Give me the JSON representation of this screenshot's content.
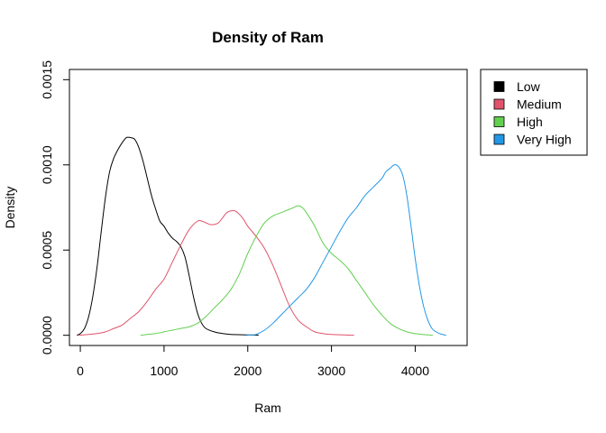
{
  "chart_data": {
    "type": "line",
    "title": "Density of Ram",
    "xlabel": "Ram",
    "ylabel": "Density",
    "xlim": [
      -130,
      4620
    ],
    "ylim": [
      -6e-05,
      0.00156
    ],
    "x_ticks": [
      0,
      1000,
      2000,
      3000,
      4000
    ],
    "x_tick_labels": [
      "0",
      "1000",
      "2000",
      "3000",
      "4000"
    ],
    "y_ticks": [
      0,
      0.0005,
      0.001,
      0.0015
    ],
    "y_tick_labels": [
      "0.0000",
      "0.0005",
      "0.0010",
      "0.0015"
    ],
    "grid": false,
    "legend_position": "top-right-outside",
    "series": [
      {
        "name": "Low",
        "color": "#000000",
        "points": [
          [
            -40,
            0
          ],
          [
            0,
            1e-05
          ],
          [
            50,
            4e-05
          ],
          [
            100,
            0.00011
          ],
          [
            150,
            0.00023
          ],
          [
            200,
            0.0004
          ],
          [
            250,
            0.00061
          ],
          [
            300,
            0.00081
          ],
          [
            350,
            0.00096
          ],
          [
            400,
            0.00104
          ],
          [
            450,
            0.00109
          ],
          [
            500,
            0.00113
          ],
          [
            550,
            0.00116
          ],
          [
            600,
            0.00116
          ],
          [
            650,
            0.00115
          ],
          [
            700,
            0.0011
          ],
          [
            750,
            0.00102
          ],
          [
            800,
            0.00092
          ],
          [
            850,
            0.00082
          ],
          [
            900,
            0.00074
          ],
          [
            950,
            0.00067
          ],
          [
            1000,
            0.00064
          ],
          [
            1050,
            0.0006
          ],
          [
            1100,
            0.00057
          ],
          [
            1150,
            0.00055
          ],
          [
            1200,
            0.00052
          ],
          [
            1250,
            0.00046
          ],
          [
            1300,
            0.00035
          ],
          [
            1350,
            0.00023
          ],
          [
            1400,
            0.00013
          ],
          [
            1450,
            7e-05
          ],
          [
            1500,
            4e-05
          ],
          [
            1600,
            2e-05
          ],
          [
            1700,
            1e-05
          ],
          [
            1800,
            5e-06
          ],
          [
            2000,
            2e-06
          ],
          [
            2130,
            0
          ]
        ]
      },
      {
        "name": "Medium",
        "color": "#DF536B",
        "points": [
          [
            -20,
            0
          ],
          [
            100,
            5e-06
          ],
          [
            200,
            1e-05
          ],
          [
            300,
            2e-05
          ],
          [
            400,
            4e-05
          ],
          [
            500,
            6e-05
          ],
          [
            600,
            0.0001
          ],
          [
            700,
            0.00014
          ],
          [
            800,
            0.0002
          ],
          [
            900,
            0.00027
          ],
          [
            1000,
            0.00033
          ],
          [
            1100,
            0.00043
          ],
          [
            1200,
            0.00053
          ],
          [
            1300,
            0.00062
          ],
          [
            1400,
            0.00067
          ],
          [
            1450,
            0.00067
          ],
          [
            1500,
            0.00066
          ],
          [
            1550,
            0.00065
          ],
          [
            1600,
            0.00065
          ],
          [
            1650,
            0.00066
          ],
          [
            1700,
            0.00069
          ],
          [
            1750,
            0.00072
          ],
          [
            1800,
            0.00073
          ],
          [
            1850,
            0.00073
          ],
          [
            1900,
            0.00071
          ],
          [
            1950,
            0.00068
          ],
          [
            2000,
            0.00064
          ],
          [
            2100,
            0.00058
          ],
          [
            2200,
            0.00051
          ],
          [
            2300,
            0.00041
          ],
          [
            2400,
            0.00029
          ],
          [
            2500,
            0.00017
          ],
          [
            2600,
            9e-05
          ],
          [
            2700,
            5e-05
          ],
          [
            2800,
            2e-05
          ],
          [
            2900,
            1e-05
          ],
          [
            3000,
            5e-06
          ],
          [
            3270,
            0
          ]
        ]
      },
      {
        "name": "High",
        "color": "#61D04F",
        "points": [
          [
            720,
            0
          ],
          [
            800,
            5e-06
          ],
          [
            900,
            1e-05
          ],
          [
            1000,
            2e-05
          ],
          [
            1100,
            3e-05
          ],
          [
            1200,
            4e-05
          ],
          [
            1300,
            5e-05
          ],
          [
            1400,
            7e-05
          ],
          [
            1500,
            0.00011
          ],
          [
            1600,
            0.00016
          ],
          [
            1700,
            0.00021
          ],
          [
            1800,
            0.00027
          ],
          [
            1900,
            0.00036
          ],
          [
            2000,
            0.00048
          ],
          [
            2100,
            0.00058
          ],
          [
            2200,
            0.00066
          ],
          [
            2300,
            0.0007
          ],
          [
            2400,
            0.00072
          ],
          [
            2500,
            0.00074
          ],
          [
            2550,
            0.00075
          ],
          [
            2600,
            0.00076
          ],
          [
            2650,
            0.00075
          ],
          [
            2700,
            0.00072
          ],
          [
            2800,
            0.00064
          ],
          [
            2900,
            0.00054
          ],
          [
            3000,
            0.00048
          ],
          [
            3100,
            0.00044
          ],
          [
            3200,
            0.00039
          ],
          [
            3300,
            0.00032
          ],
          [
            3400,
            0.00025
          ],
          [
            3500,
            0.00018
          ],
          [
            3600,
            0.00012
          ],
          [
            3700,
            7e-05
          ],
          [
            3800,
            4e-05
          ],
          [
            3900,
            2e-05
          ],
          [
            4000,
            1e-05
          ],
          [
            4100,
            4e-06
          ],
          [
            4210,
            0
          ]
        ]
      },
      {
        "name": "Very High",
        "color": "#2297E6",
        "points": [
          [
            1980,
            0
          ],
          [
            2050,
            2e-06
          ],
          [
            2100,
            5e-06
          ],
          [
            2200,
            3e-05
          ],
          [
            2300,
            7e-05
          ],
          [
            2400,
            0.00012
          ],
          [
            2500,
            0.00017
          ],
          [
            2600,
            0.00022
          ],
          [
            2700,
            0.00027
          ],
          [
            2800,
            0.00034
          ],
          [
            2900,
            0.00043
          ],
          [
            3000,
            0.00052
          ],
          [
            3100,
            0.00061
          ],
          [
            3200,
            0.00069
          ],
          [
            3300,
            0.00075
          ],
          [
            3400,
            0.00082
          ],
          [
            3500,
            0.00087
          ],
          [
            3600,
            0.00092
          ],
          [
            3650,
            0.00096
          ],
          [
            3700,
            0.00098
          ],
          [
            3750,
            0.001
          ],
          [
            3800,
            0.00099
          ],
          [
            3850,
            0.00094
          ],
          [
            3900,
            0.00082
          ],
          [
            3950,
            0.00064
          ],
          [
            4000,
            0.00045
          ],
          [
            4050,
            0.00029
          ],
          [
            4100,
            0.00017
          ],
          [
            4150,
            9e-05
          ],
          [
            4200,
            4e-05
          ],
          [
            4250,
            2e-05
          ],
          [
            4300,
            8e-06
          ],
          [
            4370,
            0
          ]
        ]
      }
    ]
  }
}
